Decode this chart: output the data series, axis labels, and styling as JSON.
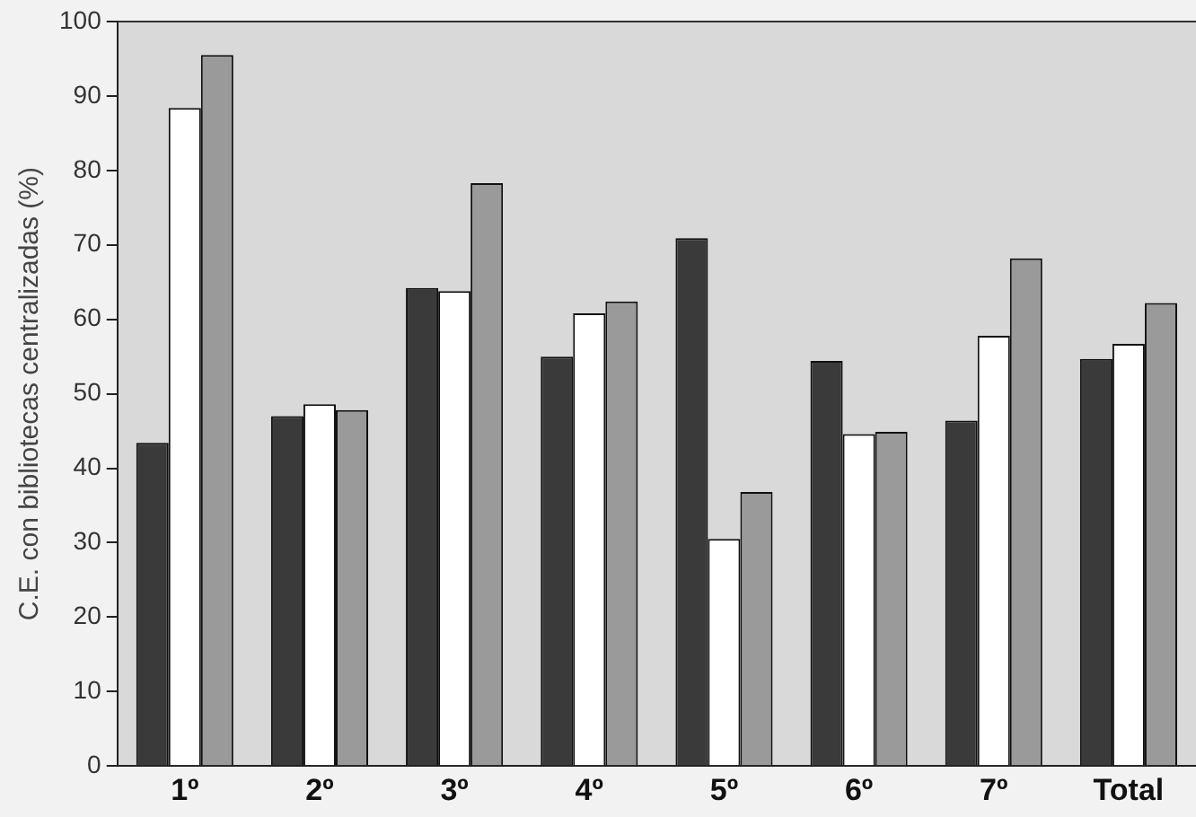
{
  "chart_data": {
    "type": "bar",
    "ylabel": "C.E. con bibliotecas centralizadas (%)",
    "categories": [
      "1º",
      "2º",
      "3º",
      "4º",
      "5º",
      "6º",
      "7º",
      "Total"
    ],
    "series": [
      {
        "color": "#3a3a3a",
        "values": [
          43.4,
          47,
          64.2,
          55,
          70.9,
          54.4,
          46.4,
          54.7
        ]
      },
      {
        "color": "#ffffff",
        "values": [
          88.4,
          48.6,
          63.8,
          60.8,
          30.5,
          44.6,
          57.8,
          56.7
        ]
      },
      {
        "color": "#9a9a9a",
        "values": [
          95.5,
          47.8,
          78.3,
          62.4,
          36.8,
          44.9,
          68.2,
          62.2
        ]
      }
    ],
    "ylim": [
      0,
      100
    ],
    "yticks": [
      0,
      10,
      20,
      30,
      40,
      50,
      60,
      70,
      80,
      90,
      100
    ],
    "grid": false,
    "legend": false
  }
}
